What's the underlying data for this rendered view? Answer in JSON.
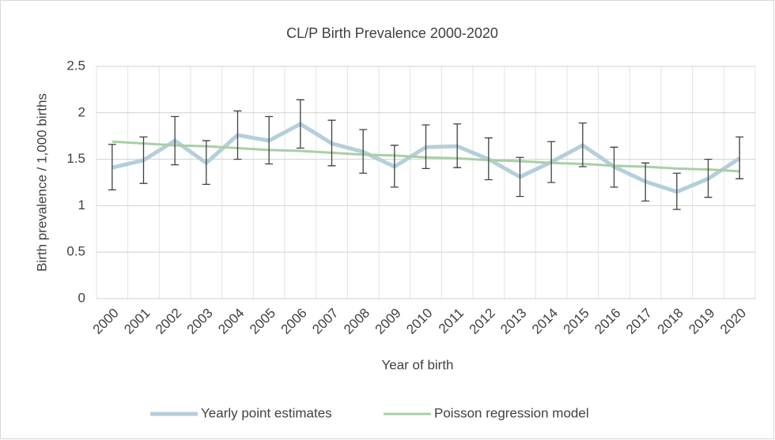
{
  "chart_data": {
    "type": "line",
    "title": "CL/P Birth Prevalence 2000-2020",
    "x_label": "Year of birth",
    "y_label": "Birth prevalence / 1,000 births",
    "categories": [
      "2000",
      "2001",
      "2002",
      "2003",
      "2004",
      "2005",
      "2006",
      "2007",
      "2008",
      "2009",
      "2010",
      "2011",
      "2012",
      "2013",
      "2014",
      "2015",
      "2016",
      "2017",
      "2018",
      "2019",
      "2020"
    ],
    "series": [
      {
        "name": "Yearly point estimates",
        "color": "#b4cfdb",
        "values": [
          1.41,
          1.49,
          1.7,
          1.46,
          1.76,
          1.7,
          1.88,
          1.67,
          1.58,
          1.42,
          1.63,
          1.64,
          1.5,
          1.31,
          1.47,
          1.65,
          1.42,
          1.26,
          1.15,
          1.29,
          1.51
        ],
        "lower": [
          1.17,
          1.24,
          1.44,
          1.23,
          1.5,
          1.45,
          1.62,
          1.43,
          1.35,
          1.2,
          1.4,
          1.41,
          1.28,
          1.1,
          1.25,
          1.42,
          1.2,
          1.05,
          0.96,
          1.09,
          1.29
        ],
        "upper": [
          1.66,
          1.74,
          1.96,
          1.7,
          2.02,
          1.96,
          2.14,
          1.92,
          1.82,
          1.65,
          1.87,
          1.88,
          1.73,
          1.52,
          1.69,
          1.89,
          1.63,
          1.46,
          1.35,
          1.5,
          1.74
        ]
      },
      {
        "name": "Poisson regression model",
        "color": "#a9cfa5",
        "values": [
          1.69,
          1.67,
          1.65,
          1.64,
          1.62,
          1.6,
          1.59,
          1.57,
          1.55,
          1.54,
          1.52,
          1.51,
          1.49,
          1.48,
          1.46,
          1.45,
          1.43,
          1.42,
          1.4,
          1.39,
          1.37
        ]
      }
    ],
    "error_color": "#404040",
    "ylim": [
      0,
      2.5
    ],
    "yticks": [
      0,
      0.5,
      1,
      1.5,
      2,
      2.5
    ],
    "grid": true,
    "legend": "bottom"
  }
}
